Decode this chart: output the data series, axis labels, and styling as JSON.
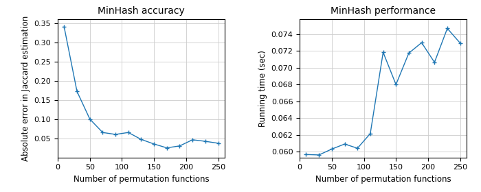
{
  "accuracy": {
    "title": "MinHash accuracy",
    "xlabel": "Number of permutation functions",
    "ylabel": "Absolute error in Jaccard estimation",
    "x": [
      10,
      30,
      50,
      70,
      90,
      110,
      130,
      150,
      170,
      190,
      210,
      230,
      250
    ],
    "y": [
      0.34,
      0.172,
      0.1,
      0.065,
      0.06,
      0.065,
      0.047,
      0.035,
      0.025,
      0.03,
      0.046,
      0.042,
      0.037
    ],
    "ylim": [
      0.0,
      0.36
    ],
    "yticks": [
      0.05,
      0.1,
      0.15,
      0.2,
      0.25,
      0.3,
      0.35
    ],
    "xlim": [
      0,
      260
    ],
    "xticks": [
      0,
      50,
      100,
      150,
      200,
      250
    ],
    "color": "#1f77b4",
    "marker": "+"
  },
  "performance": {
    "title": "MinHash performance",
    "xlabel": "Number of permutation functions",
    "ylabel": "Running time (sec)",
    "x": [
      10,
      30,
      50,
      70,
      90,
      110,
      130,
      150,
      170,
      190,
      210,
      230,
      250
    ],
    "y": [
      0.05965,
      0.0596,
      0.0603,
      0.0609,
      0.0604,
      0.06215,
      0.07185,
      0.068,
      0.07175,
      0.073,
      0.07065,
      0.0747,
      0.07295
    ],
    "ylim": [
      0.0593,
      0.0758
    ],
    "yticks": [
      0.06,
      0.062,
      0.064,
      0.066,
      0.068,
      0.07,
      0.072,
      0.074
    ],
    "xlim": [
      0,
      260
    ],
    "xticks": [
      0,
      50,
      100,
      150,
      200,
      250
    ],
    "color": "#1f77b4",
    "marker": "+"
  },
  "fig_bg": "#ffffff",
  "fig_width": 7.0,
  "fig_height": 2.8,
  "dpi": 100
}
